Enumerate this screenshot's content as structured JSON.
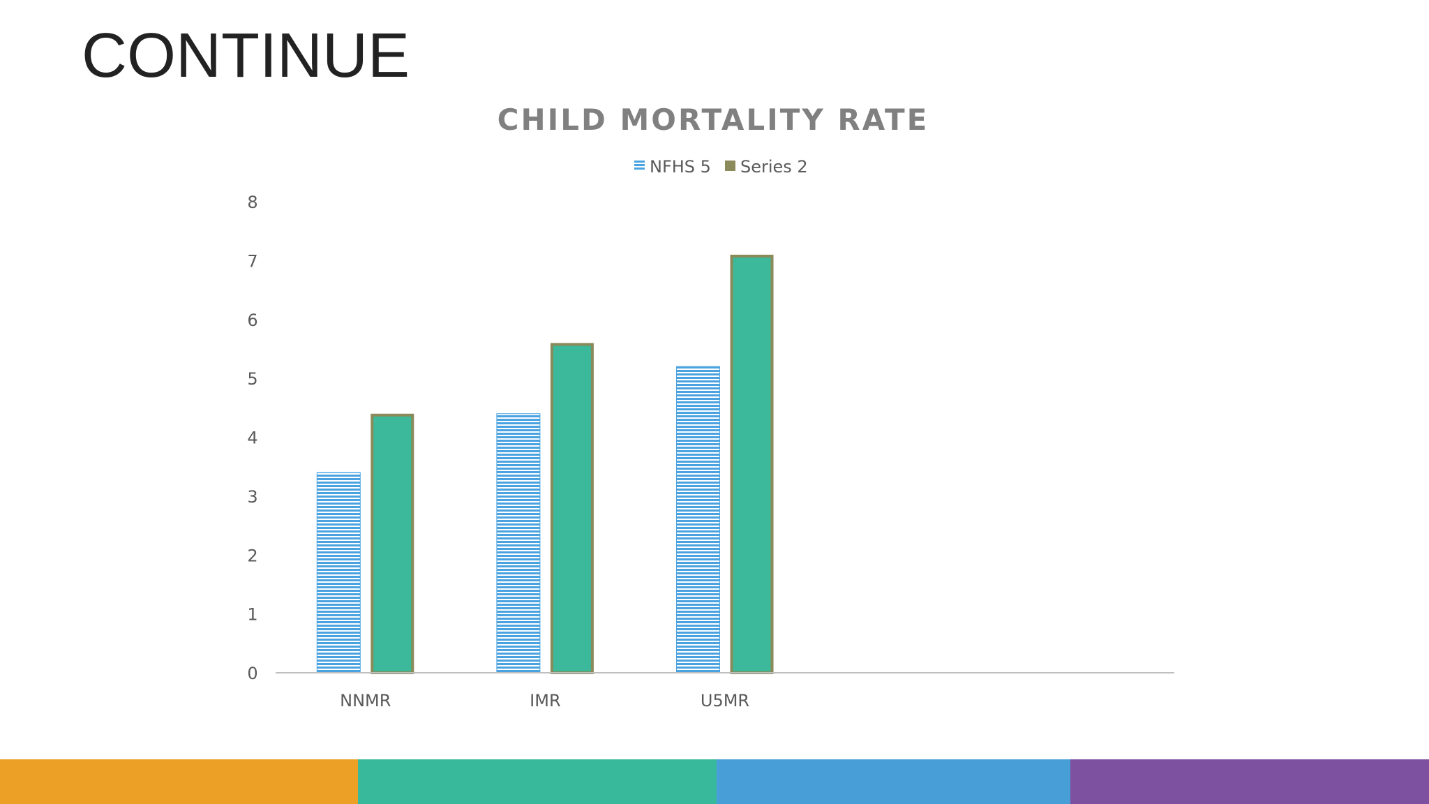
{
  "slide": {
    "title": "CONTINUE"
  },
  "chart_data": {
    "type": "bar",
    "title": "CHILD MORTALITY RATE",
    "categories": [
      "NNMR",
      "IMR",
      "U5MR",
      "",
      ""
    ],
    "series": [
      {
        "name": "NFHS 5",
        "values": [
          3.4,
          4.4,
          5.2,
          null,
          null
        ],
        "color": "#4aa3e0"
      },
      {
        "name": "Series 2",
        "values": [
          4.4,
          5.6,
          7.1,
          null,
          null
        ],
        "color": "#3bb99a",
        "border": "#8a8a5a"
      }
    ],
    "ylim": [
      0,
      8
    ],
    "yticks": [
      "0",
      "1",
      "2",
      "3",
      "4",
      "5",
      "6",
      "7",
      "8"
    ],
    "legend": "top-center",
    "grid": false
  },
  "footer": {
    "colors": [
      "#eca025",
      "#39b99c",
      "#489fd8",
      "#7e50a0"
    ]
  }
}
